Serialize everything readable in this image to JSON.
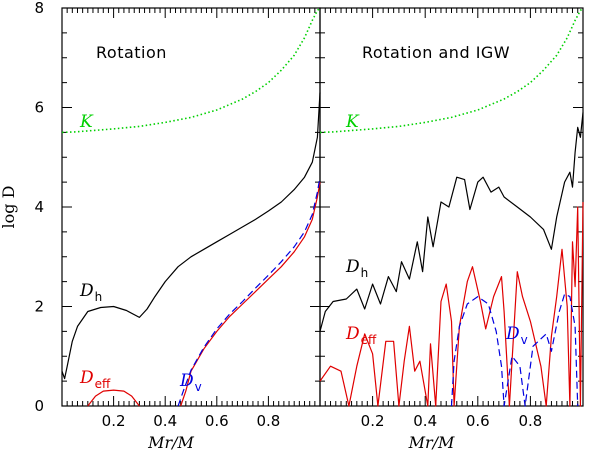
{
  "chart_data": {
    "type": "line",
    "ylabel": "log D",
    "ylim": [
      0,
      8
    ],
    "yticks": [
      "0",
      "2",
      "4",
      "6",
      "8"
    ],
    "colors": {
      "K": "#00d000",
      "Dh": "#000000",
      "Deff": "#e00000",
      "Dv": "#0000e0"
    },
    "panels": [
      {
        "title": "Rotation",
        "xlabel": "Mr/M",
        "xlim": [
          0,
          1
        ],
        "xticks": [
          "0.2",
          "0.4",
          "0.6",
          "0.8"
        ],
        "series": [
          {
            "name": "K",
            "label": "K",
            "sub": "",
            "style": "dotted",
            "x": [
              0,
              0.05,
              0.1,
              0.2,
              0.3,
              0.4,
              0.5,
              0.6,
              0.7,
              0.75,
              0.8,
              0.85,
              0.9,
              0.94,
              0.97,
              0.99,
              1.0
            ],
            "y": [
              5.5,
              5.51,
              5.53,
              5.57,
              5.62,
              5.7,
              5.8,
              5.95,
              6.17,
              6.32,
              6.5,
              6.75,
              7.05,
              7.4,
              7.75,
              7.95,
              8.0
            ]
          },
          {
            "name": "Dh",
            "label": "D",
            "sub": "h",
            "style": "solid",
            "x": [
              0,
              0.01,
              0.02,
              0.04,
              0.06,
              0.1,
              0.15,
              0.2,
              0.25,
              0.3,
              0.33,
              0.36,
              0.4,
              0.45,
              0.5,
              0.55,
              0.6,
              0.65,
              0.7,
              0.75,
              0.8,
              0.85,
              0.9,
              0.94,
              0.97,
              0.99,
              1.0
            ],
            "y": [
              0.7,
              0.55,
              0.8,
              1.3,
              1.6,
              1.9,
              1.98,
              2.0,
              1.92,
              1.78,
              1.95,
              2.2,
              2.5,
              2.8,
              3.0,
              3.15,
              3.3,
              3.45,
              3.6,
              3.75,
              3.92,
              4.1,
              4.35,
              4.6,
              4.9,
              5.4,
              6.3
            ]
          },
          {
            "name": "Deff",
            "label": "D",
            "sub": "eff",
            "style": "solid",
            "x": [
              0.1,
              0.13,
              0.16,
              0.2,
              0.24,
              0.27,
              0.3
            ],
            "y": [
              0,
              0.2,
              0.3,
              0.32,
              0.3,
              0.2,
              0
            ],
            "x2": [
              0.46,
              0.48,
              0.5,
              0.55,
              0.6,
              0.65,
              0.7,
              0.75,
              0.8,
              0.85,
              0.9,
              0.94,
              0.97,
              0.99,
              1.0
            ],
            "y2": [
              0,
              0.3,
              0.7,
              1.15,
              1.5,
              1.8,
              2.05,
              2.3,
              2.55,
              2.8,
              3.1,
              3.4,
              3.75,
              4.2,
              4.5
            ]
          },
          {
            "name": "Dv",
            "label": "D",
            "sub": "v",
            "style": "dashed",
            "x": [
              0.45,
              0.47,
              0.5,
              0.55,
              0.6,
              0.65,
              0.7,
              0.75,
              0.8,
              0.85,
              0.9,
              0.94,
              0.97,
              0.99,
              1.0
            ],
            "y": [
              0,
              0.3,
              0.72,
              1.18,
              1.55,
              1.85,
              2.1,
              2.37,
              2.63,
              2.9,
              3.2,
              3.5,
              3.85,
              4.3,
              4.6
            ]
          }
        ]
      },
      {
        "title": "Rotation and IGW",
        "xlabel": "Mr/M",
        "xlim": [
          0,
          1
        ],
        "xticks": [
          "0.2",
          "0.4",
          "0.6",
          "0.8"
        ],
        "series": [
          {
            "name": "K",
            "label": "K",
            "sub": "",
            "style": "dotted",
            "x": [
              0,
              0.05,
              0.1,
              0.2,
              0.3,
              0.4,
              0.5,
              0.6,
              0.7,
              0.75,
              0.8,
              0.85,
              0.9,
              0.94,
              0.97,
              0.99,
              1.0
            ],
            "y": [
              5.5,
              5.51,
              5.53,
              5.57,
              5.62,
              5.7,
              5.8,
              5.95,
              6.17,
              6.32,
              6.5,
              6.75,
              7.05,
              7.4,
              7.75,
              7.95,
              8.0
            ]
          },
          {
            "name": "Dh",
            "label": "D",
            "sub": "h",
            "style": "solid",
            "x": [
              0,
              0.02,
              0.05,
              0.1,
              0.14,
              0.17,
              0.2,
              0.23,
              0.26,
              0.29,
              0.31,
              0.34,
              0.37,
              0.39,
              0.41,
              0.43,
              0.46,
              0.49,
              0.52,
              0.55,
              0.57,
              0.6,
              0.62,
              0.65,
              0.68,
              0.7,
              0.75,
              0.8,
              0.85,
              0.88,
              0.9,
              0.93,
              0.95,
              0.96,
              0.97,
              0.98,
              0.99,
              1.0
            ],
            "y": [
              1.5,
              1.9,
              2.1,
              2.15,
              2.35,
              1.95,
              2.45,
              2.05,
              2.6,
              2.3,
              2.9,
              2.55,
              3.3,
              2.7,
              3.8,
              3.2,
              4.1,
              4.0,
              4.6,
              4.55,
              3.95,
              4.5,
              4.6,
              4.3,
              4.4,
              4.2,
              4.0,
              3.8,
              3.55,
              3.15,
              3.8,
              4.5,
              4.7,
              4.4,
              5.1,
              5.6,
              5.4,
              5.9
            ]
          },
          {
            "name": "Deff",
            "label": "D",
            "sub": "eff",
            "style": "solid",
            "x": [
              0,
              0.04,
              0.08,
              0.11,
              0.14,
              0.17,
              0.2,
              0.22,
              0.25,
              0.28,
              0.3,
              0.32,
              0.34,
              0.36,
              0.38,
              0.41,
              0.42,
              0.44,
              0.46,
              0.48,
              0.5,
              0.51,
              0.53,
              0.56,
              0.58,
              0.61,
              0.63,
              0.66,
              0.69,
              0.7,
              0.72,
              0.75,
              0.77,
              0.8,
              0.84,
              0.86,
              0.88,
              0.9,
              0.92,
              0.94,
              0.95,
              0.96,
              0.97,
              0.98,
              0.99,
              1.0
            ],
            "y": [
              0.5,
              0.8,
              0.7,
              0,
              0.8,
              1.45,
              1.05,
              0,
              1.3,
              1.3,
              0,
              0.9,
              1.6,
              0.7,
              0.9,
              0,
              1.25,
              0,
              2.1,
              2.45,
              1.7,
              0,
              1.6,
              2.5,
              2.8,
              2.1,
              1.55,
              2.2,
              2.6,
              1.9,
              0,
              2.7,
              2.2,
              1.7,
              0.8,
              0,
              1.4,
              2.2,
              3.15,
              2.0,
              0,
              3.3,
              2.4,
              4.0,
              0,
              4.1
            ]
          },
          {
            "name": "Dv",
            "label": "D",
            "sub": "v",
            "style": "dashed",
            "x": [
              0.5,
              0.51,
              0.53,
              0.56,
              0.6,
              0.64,
              0.67,
              0.69,
              0.7,
              0.73,
              0.76,
              0.78,
              0.81,
              0.84,
              0.86,
              0.88,
              0.91,
              0.93,
              0.95,
              0.97,
              0.98
            ],
            "y": [
              0,
              0.9,
              1.6,
              2.05,
              2.2,
              2.05,
              1.5,
              0.8,
              0,
              1.0,
              0.8,
              0,
              1.2,
              1.35,
              1.45,
              1.1,
              1.9,
              2.25,
              2.2,
              1.6,
              0
            ]
          }
        ]
      }
    ]
  }
}
